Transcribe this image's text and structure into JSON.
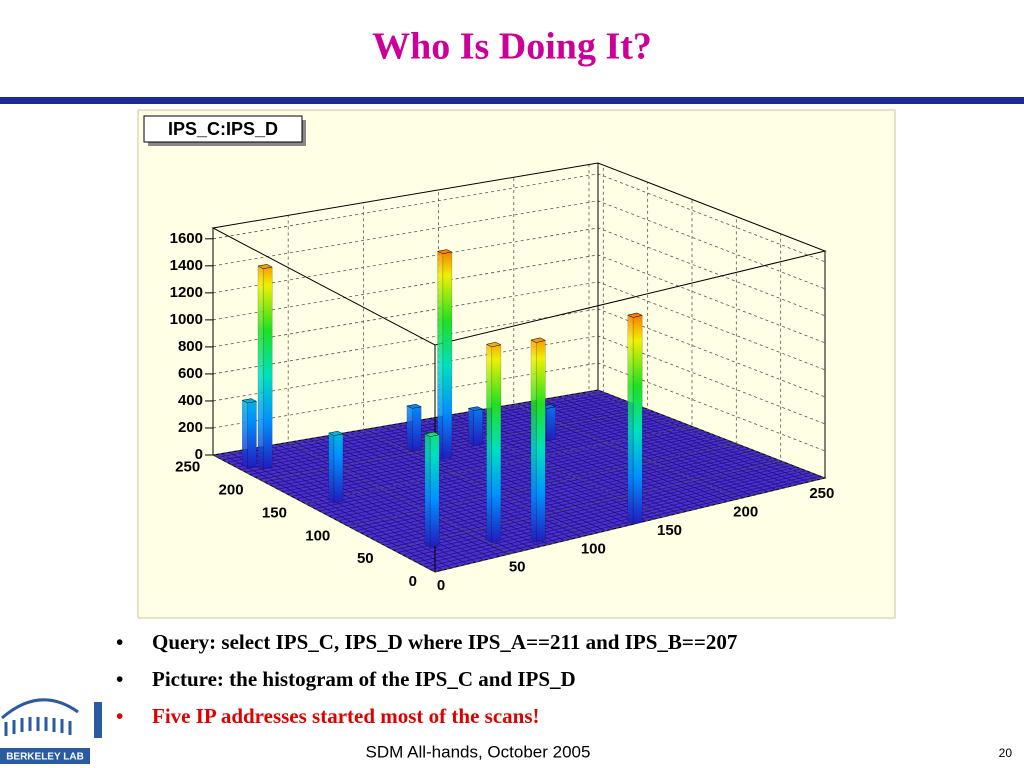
{
  "title": "Who Is Doing It?",
  "bullets": [
    "Query: select IPS_C, IPS_D where IPS_A==211 and IPS_B==207",
    "Picture: the histogram of the IPS_C and IPS_D",
    "Five IP addresses started most of the scans!"
  ],
  "footer": "SDM All-hands, October 2005",
  "page_number": "20",
  "logo_text": "BERKELEY LAB",
  "chart_data": {
    "type": "lego3d",
    "title": "IPS_C:IPS_D",
    "x": [
      8,
      15,
      17,
      22,
      111,
      104,
      54,
      139,
      74,
      178,
      133
    ],
    "y": [
      228,
      222,
      144,
      42,
      182,
      205,
      27,
      195,
      11,
      179,
      3
    ],
    "values": [
      480,
      1480,
      500,
      820,
      1520,
      320,
      1450,
      260,
      1480,
      240,
      1530
    ],
    "xlim": [
      0,
      256
    ],
    "ylim": [
      0,
      256
    ],
    "zlim": [
      0,
      1680
    ],
    "xticks": [
      0,
      50,
      100,
      150,
      200,
      250
    ],
    "yticks": [
      0,
      50,
      100,
      150,
      200,
      250
    ],
    "zticks": [
      0,
      200,
      400,
      600,
      800,
      1000,
      1200,
      1400,
      1600
    ]
  }
}
